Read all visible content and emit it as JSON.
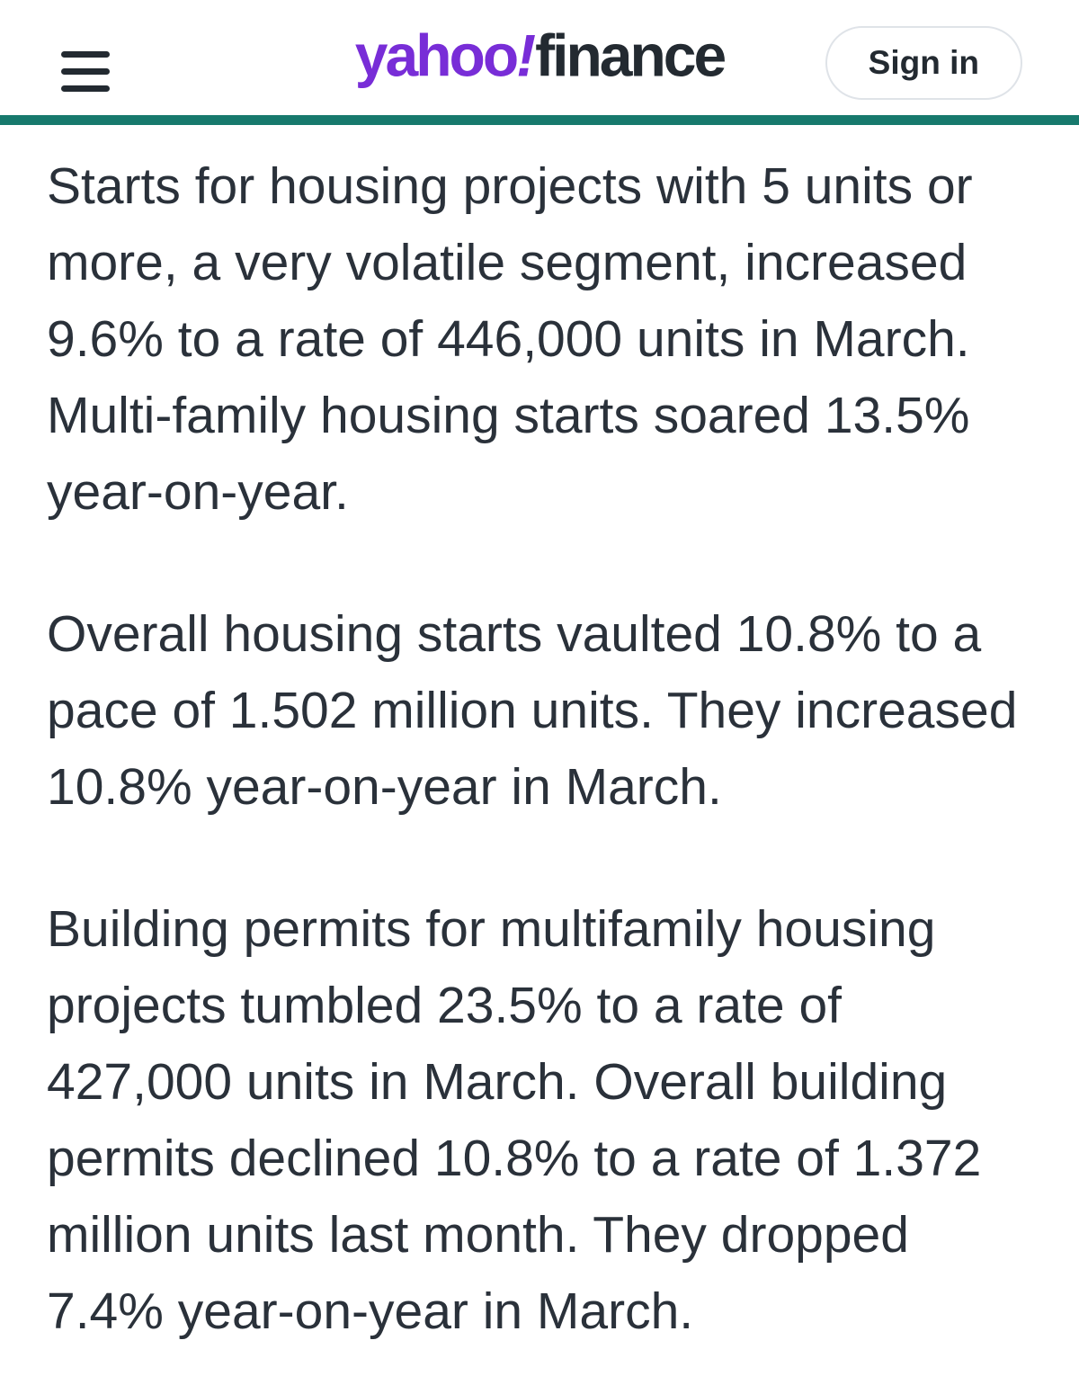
{
  "header": {
    "menu_button": {
      "icon": "hamburger-icon"
    },
    "logo": {
      "yahoo": "yahoo",
      "exclamation": "!",
      "finance": "finance"
    },
    "sign_in": {
      "label": "Sign in"
    }
  },
  "article": {
    "paragraphs": [
      "Starts for housing projects with 5 units or more, a very volatile segment, increased 9.6% to a rate of 446,000 units in March. Multi-family housing starts soared 13.5% year-on-year.",
      "Overall housing starts vaulted 10.8% to a pace of 1.502 million units. They increased 10.8% year-on-year in March.",
      "Building permits for multifamily housing projects tumbled 23.5% to a rate of 427,000 units in March. Overall building permits declined 10.8% to a rate of 1.372 million units last month. They dropped 7.4% year-on-year in March."
    ]
  },
  "colors": {
    "brand_purple": "#782dd7",
    "brand_dark": "#232a31",
    "accent_teal": "#17796d",
    "body_text": "#2a313a",
    "signin_border": "#dfe3e8",
    "background": "#ffffff"
  }
}
